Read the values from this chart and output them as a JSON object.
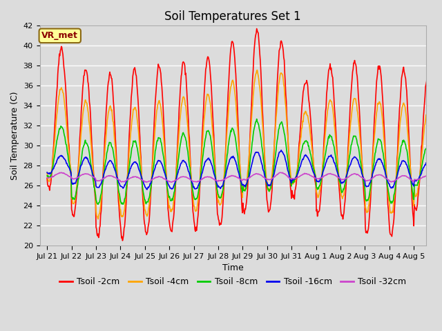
{
  "title": "Soil Temperatures Set 1",
  "xlabel": "Time",
  "ylabel": "Soil Temperature (C)",
  "ylim": [
    20,
    42
  ],
  "yticks": [
    20,
    22,
    24,
    26,
    28,
    30,
    32,
    34,
    36,
    38,
    40,
    42
  ],
  "xtick_labels": [
    "Jul 21",
    "Jul 22",
    "Jul 23",
    "Jul 24",
    "Jul 25",
    "Jul 26",
    "Jul 27",
    "Jul 28",
    "Jul 29",
    "Jul 30",
    "Jul 31",
    "Aug 1",
    "Aug 2",
    "Aug 3",
    "Aug 4",
    "Aug 5"
  ],
  "colors": {
    "Tsoil -2cm": "#FF0000",
    "Tsoil -4cm": "#FFA500",
    "Tsoil -8cm": "#00CC00",
    "Tsoil -16cm": "#0000EE",
    "Tsoil -32cm": "#CC44CC"
  },
  "annotation_text": "VR_met",
  "annotation_color": "#8B0000",
  "annotation_bg": "#FFFF99",
  "annotation_edge": "#8B6914",
  "background_color": "#DCDCDC",
  "grid_color": "#FFFFFF",
  "title_fontsize": 12,
  "axis_fontsize": 9,
  "tick_fontsize": 8,
  "legend_fontsize": 9
}
